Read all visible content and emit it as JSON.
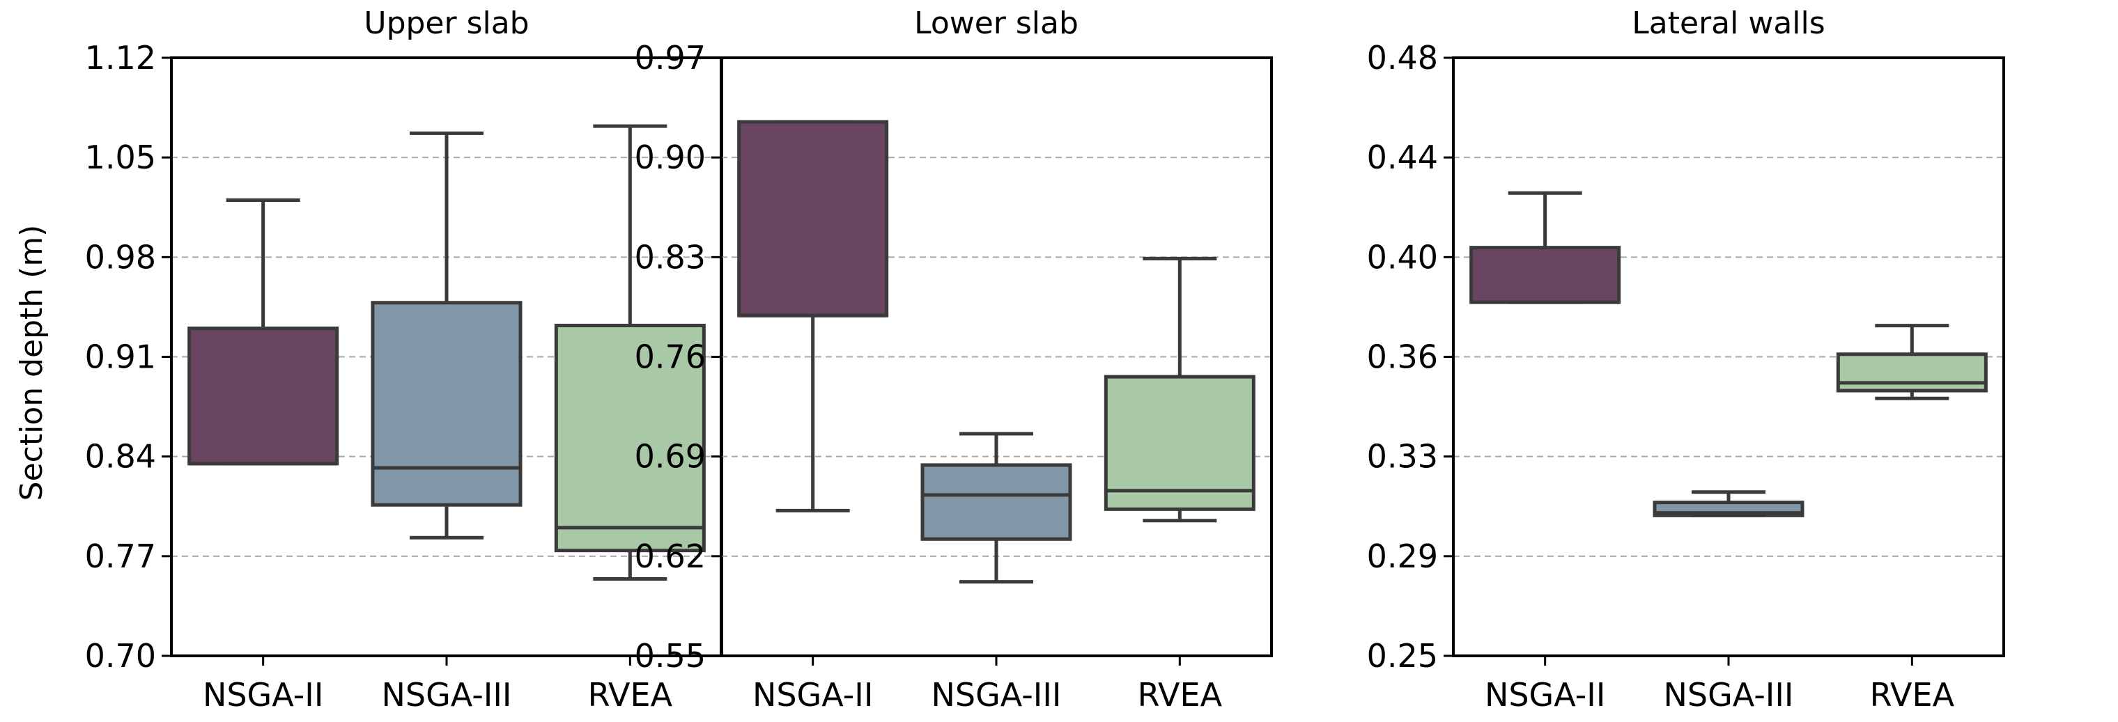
{
  "colors": {
    "nsga2": "#6a4562",
    "nsga3": "#8197a8",
    "rvea": "#a9c8a5",
    "box_edge": "#3a3a3a",
    "grid": "#a9a9a9"
  },
  "chart_data": [
    {
      "type": "box",
      "title": "Upper slab",
      "ylabel": "Section depth (m)",
      "xlabel": "",
      "ylim": [
        0.7,
        1.12
      ],
      "yticks": [
        "0.70",
        "0.77",
        "0.84",
        "0.91",
        "0.98",
        "1.05",
        "1.12"
      ],
      "grid": "horizontal dashed",
      "categories": [
        "NSGA-II",
        "NSGA-III",
        "RVEA"
      ],
      "boxes": [
        {
          "name": "NSGA-II",
          "whisker_low": 0.835,
          "q1": 0.835,
          "median": 0.835,
          "q3": 0.93,
          "whisker_high": 1.02
        },
        {
          "name": "NSGA-III",
          "whisker_low": 0.783,
          "q1": 0.806,
          "median": 0.832,
          "q3": 0.948,
          "whisker_high": 1.067
        },
        {
          "name": "RVEA",
          "whisker_low": 0.754,
          "q1": 0.774,
          "median": 0.79,
          "q3": 0.932,
          "whisker_high": 1.072
        }
      ]
    },
    {
      "type": "box",
      "title": "Lower slab",
      "xlabel": "",
      "ylim": [
        0.55,
        0.97
      ],
      "yticks": [
        "0.55",
        "0.62",
        "0.69",
        "0.76",
        "0.83",
        "0.90",
        "0.97"
      ],
      "grid": "horizontal dashed",
      "categories": [
        "NSGA-II",
        "NSGA-III",
        "RVEA"
      ],
      "boxes": [
        {
          "name": "NSGA-II",
          "whisker_low": 0.652,
          "q1": 0.789,
          "median": 0.789,
          "q3": 0.925,
          "whisker_high": 0.925
        },
        {
          "name": "NSGA-III",
          "whisker_low": 0.602,
          "q1": 0.632,
          "median": 0.663,
          "q3": 0.684,
          "whisker_high": 0.706
        },
        {
          "name": "RVEA",
          "whisker_low": 0.645,
          "q1": 0.653,
          "median": 0.666,
          "q3": 0.746,
          "whisker_high": 0.829
        }
      ]
    },
    {
      "type": "box",
      "title": "Lateral walls",
      "xlabel": "",
      "ylim": [
        0.25,
        0.48
      ],
      "yticks": [
        "0.25",
        "0.29",
        "0.33",
        "0.36",
        "0.40",
        "0.44",
        "0.48"
      ],
      "grid": "horizontal dashed",
      "categories": [
        "NSGA-II",
        "NSGA-III",
        "RVEA"
      ],
      "boxes": [
        {
          "name": "NSGA-II",
          "whisker_low": 0.386,
          "q1": 0.386,
          "median": 0.386,
          "q3": 0.407,
          "whisker_high": 0.428
        },
        {
          "name": "NSGA-III",
          "whisker_low": 0.304,
          "q1": 0.304,
          "median": 0.305,
          "q3": 0.309,
          "whisker_high": 0.313
        },
        {
          "name": "RVEA",
          "whisker_low": 0.349,
          "q1": 0.352,
          "median": 0.355,
          "q3": 0.366,
          "whisker_high": 0.377
        }
      ]
    }
  ]
}
